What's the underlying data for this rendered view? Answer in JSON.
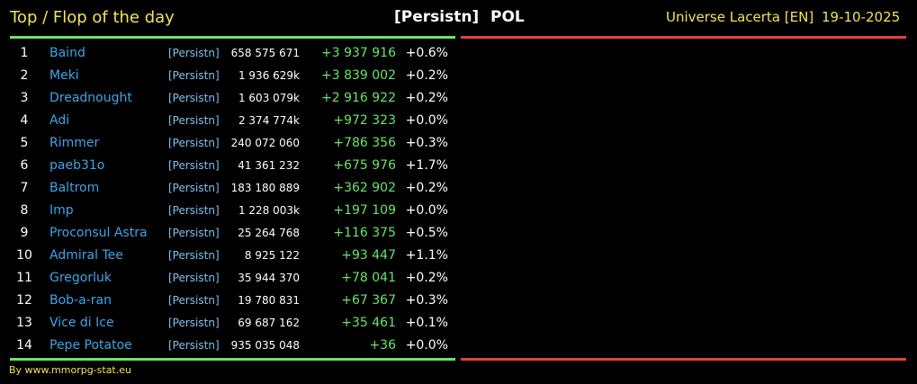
{
  "header": {
    "title": "Top / Flop of the day",
    "alliance": "[Persistn]",
    "country": "POL",
    "universe": "Universe Lacerta [EN]",
    "date": "19-10-2025"
  },
  "table": {
    "rows": [
      [
        "1",
        "Baind",
        "[Persistn]",
        "658 575 671",
        "+3 937 916",
        "+0.6%"
      ],
      [
        "2",
        "Meki",
        "[Persistn]",
        "1 936 629k",
        "+3 839 002",
        "+0.2%"
      ],
      [
        "3",
        "Dreadnought",
        "[Persistn]",
        "1 603 079k",
        "+2 916 922",
        "+0.2%"
      ],
      [
        "4",
        "Adi",
        "[Persistn]",
        "2 374 774k",
        "+972 323",
        "+0.0%"
      ],
      [
        "5",
        "Rimmer",
        "[Persistn]",
        "240 072 060",
        "+786 356",
        "+0.3%"
      ],
      [
        "6",
        "paeb31o",
        "[Persistn]",
        "41 361 232",
        "+675 976",
        "+1.7%"
      ],
      [
        "7",
        "Baltrom",
        "[Persistn]",
        "183 180 889",
        "+362 902",
        "+0.2%"
      ],
      [
        "8",
        "Imp",
        "[Persistn]",
        "1 228 003k",
        "+197 109",
        "+0.0%"
      ],
      [
        "9",
        "Proconsul Astra",
        "[Persistn]",
        "25 264 768",
        "+116 375",
        "+0.5%"
      ],
      [
        "10",
        "Admiral Tee",
        "[Persistn]",
        "8 925 122",
        "+93 447",
        "+1.1%"
      ],
      [
        "11",
        "Gregorluk",
        "[Persistn]",
        "35 944 370",
        "+78 041",
        "+0.2%"
      ],
      [
        "12",
        "Bob-a-ran",
        "[Persistn]",
        "19 780 831",
        "+67 367",
        "+0.3%"
      ],
      [
        "13",
        "Vice di Ice",
        "[Persistn]",
        "69 687 162",
        "+35 461",
        "+0.1%"
      ],
      [
        "14",
        "Pepe Potatoe",
        "[Persistn]",
        "935 035 048",
        "+36",
        "+0.0%"
      ]
    ]
  },
  "footer": {
    "credit": "By www.mmorpg-stat.eu"
  }
}
